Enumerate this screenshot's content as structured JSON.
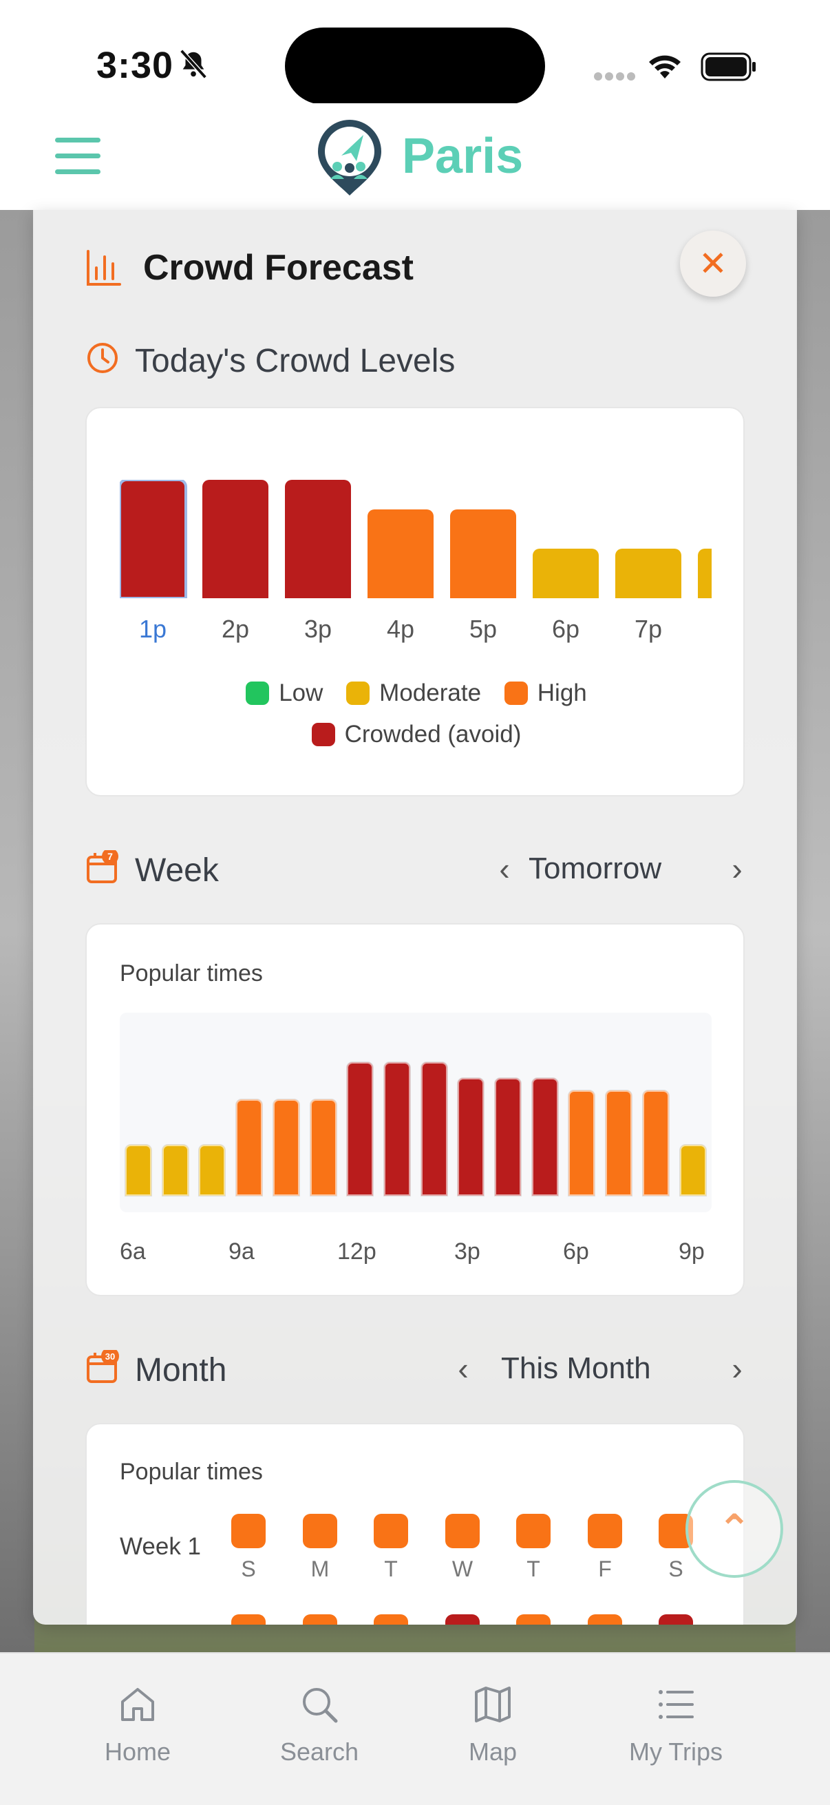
{
  "status": {
    "time": "3:30"
  },
  "header": {
    "city": "Paris"
  },
  "panel": {
    "title": "Crowd Forecast",
    "close_glyph": "✕"
  },
  "today": {
    "title": "Today's Crowd Levels",
    "bars": [
      {
        "label": "1p",
        "level": "crowded",
        "value": 1.0,
        "selected": true
      },
      {
        "label": "2p",
        "level": "crowded",
        "value": 1.0
      },
      {
        "label": "3p",
        "level": "crowded",
        "value": 1.0
      },
      {
        "label": "4p",
        "level": "high",
        "value": 0.75
      },
      {
        "label": "5p",
        "level": "high",
        "value": 0.75
      },
      {
        "label": "6p",
        "level": "moderate",
        "value": 0.42
      },
      {
        "label": "7p",
        "level": "moderate",
        "value": 0.42
      },
      {
        "label": "",
        "level": "moderate",
        "value": 0.42
      }
    ],
    "legend": [
      {
        "label": "Low",
        "color": "#22c55e"
      },
      {
        "label": "Moderate",
        "color": "#eab308"
      },
      {
        "label": "High",
        "color": "#f97316"
      },
      {
        "label": "Crowded (avoid)",
        "color": "#b91c1c"
      }
    ]
  },
  "week": {
    "title": "Week",
    "badge": "7",
    "nav_label": "Tomorrow",
    "popular_label": "Popular times",
    "bars": [
      {
        "level": "moderate",
        "value": 0.38
      },
      {
        "level": "moderate",
        "value": 0.38
      },
      {
        "level": "moderate",
        "value": 0.38
      },
      {
        "level": "high",
        "value": 0.72
      },
      {
        "level": "high",
        "value": 0.72
      },
      {
        "level": "high",
        "value": 0.72
      },
      {
        "level": "crowded",
        "value": 1.0
      },
      {
        "level": "crowded",
        "value": 1.0
      },
      {
        "level": "crowded",
        "value": 1.0
      },
      {
        "level": "crowded",
        "value": 0.88
      },
      {
        "level": "crowded",
        "value": 0.88
      },
      {
        "level": "crowded",
        "value": 0.88
      },
      {
        "level": "high",
        "value": 0.79
      },
      {
        "level": "high",
        "value": 0.79
      },
      {
        "level": "high",
        "value": 0.79
      },
      {
        "level": "moderate",
        "value": 0.38
      }
    ],
    "ticks": [
      "6a",
      "9a",
      "12p",
      "3p",
      "6p",
      "9p"
    ]
  },
  "month": {
    "title": "Month",
    "badge": "30",
    "nav_label": "This Month",
    "popular_label": "Popular times",
    "week1_label": "Week 1",
    "week1_levels": [
      "high",
      "high",
      "high",
      "high",
      "high",
      "high",
      "high"
    ],
    "week2_levels": [
      "high",
      "high",
      "high",
      "crowded",
      "high",
      "high",
      "crowded"
    ],
    "day_letters": [
      "S",
      "M",
      "T",
      "W",
      "T",
      "F",
      "S"
    ]
  },
  "colors": {
    "crowded": "#b91c1c",
    "high": "#f97316",
    "moderate": "#eab308",
    "low": "#22c55e",
    "accent": "#f26d21",
    "brand": "#5ccfb6"
  },
  "tabs": [
    {
      "label": "Home",
      "icon": "home-icon"
    },
    {
      "label": "Search",
      "icon": "search-icon"
    },
    {
      "label": "Map",
      "icon": "map-icon"
    },
    {
      "label": "My Trips",
      "icon": "list-icon"
    }
  ]
}
